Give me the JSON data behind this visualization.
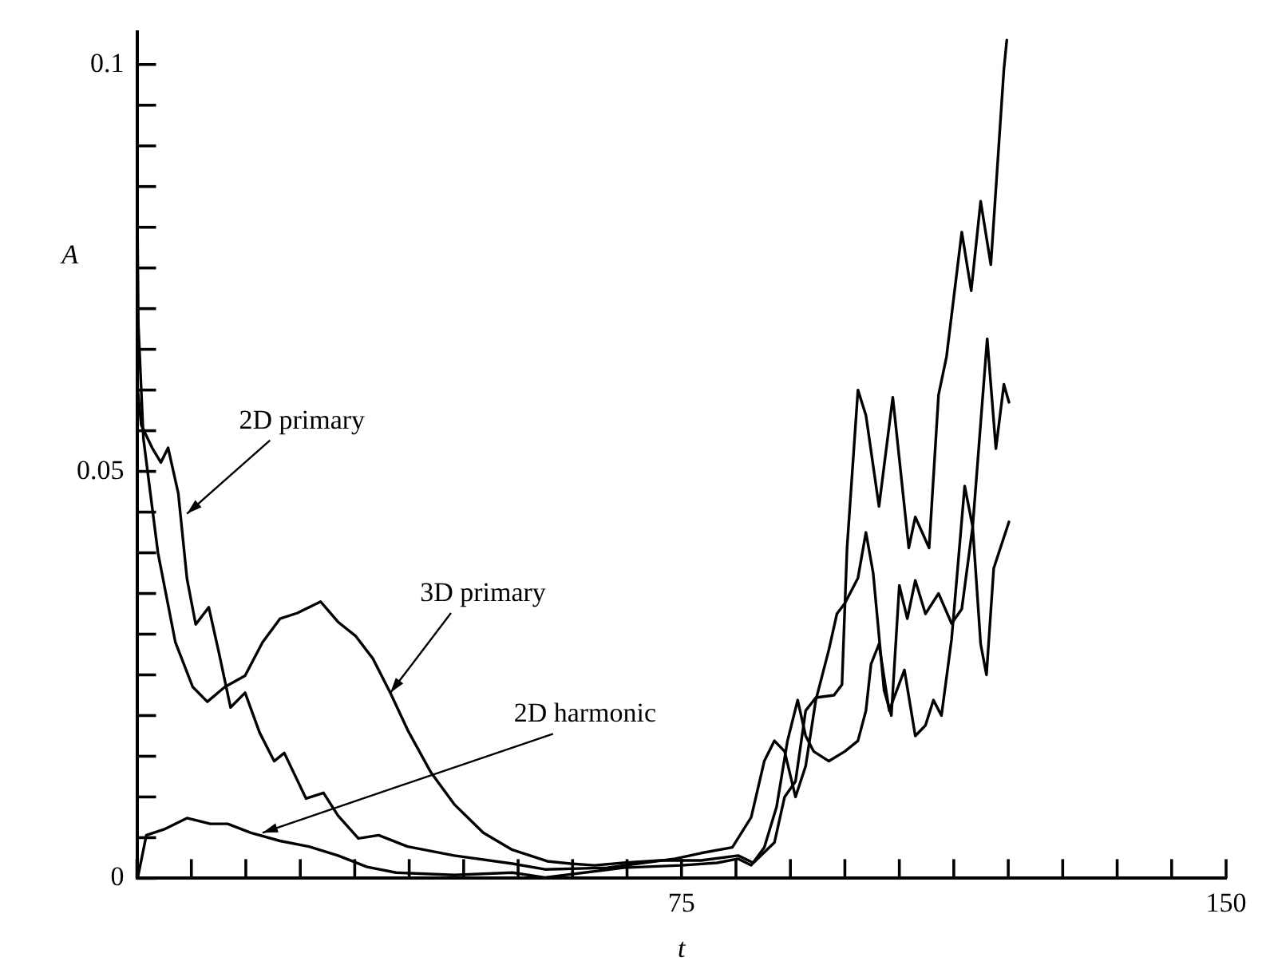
{
  "chart_data": {
    "type": "line",
    "xlabel": "t",
    "ylabel": "A",
    "xlim": [
      0,
      150
    ],
    "ylim": [
      0,
      0.104
    ],
    "xticks": [
      {
        "value": 0,
        "label": null
      },
      {
        "value": 7.5,
        "label": null
      },
      {
        "value": 15,
        "label": null
      },
      {
        "value": 22.5,
        "label": null
      },
      {
        "value": 30,
        "label": null
      },
      {
        "value": 37.5,
        "label": null
      },
      {
        "value": 45,
        "label": null
      },
      {
        "value": 52.5,
        "label": null
      },
      {
        "value": 60,
        "label": null
      },
      {
        "value": 67.5,
        "label": null
      },
      75,
      {
        "value": 82.5,
        "label": null
      },
      {
        "value": 90,
        "label": null
      },
      {
        "value": 97.5,
        "label": null
      },
      {
        "value": 105,
        "label": null
      },
      {
        "value": 112.5,
        "label": null
      },
      {
        "value": 120,
        "label": null
      },
      {
        "value": 127.5,
        "label": null
      },
      {
        "value": 135,
        "label": null
      },
      {
        "value": 142.5,
        "label": null
      },
      150
    ],
    "yticks": [
      0,
      {
        "value": 0.005,
        "label": null
      },
      {
        "value": 0.01,
        "label": null
      },
      {
        "value": 0.015,
        "label": null
      },
      {
        "value": 0.02,
        "label": null
      },
      {
        "value": 0.025,
        "label": null
      },
      {
        "value": 0.03,
        "label": null
      },
      {
        "value": 0.035,
        "label": null
      },
      {
        "value": 0.04,
        "label": null
      },
      {
        "value": 0.045,
        "label": null
      },
      0.05,
      {
        "value": 0.055,
        "label": null
      },
      {
        "value": 0.06,
        "label": null
      },
      {
        "value": 0.065,
        "label": null
      },
      {
        "value": 0.07,
        "label": null
      },
      {
        "value": 0.075,
        "label": null
      },
      {
        "value": 0.08,
        "label": null
      },
      {
        "value": 0.085,
        "label": null
      },
      {
        "value": 0.09,
        "label": null
      },
      {
        "value": 0.095,
        "label": null
      },
      0.1
    ],
    "series": [
      {
        "color": "#000000",
        "x": [
          0,
          0.6,
          2.1,
          3.3,
          4.3,
          5.7,
          6.9,
          8.1,
          9.9,
          11.3,
          12.9,
          14.9,
          16.9,
          18.9,
          20.3,
          23.3,
          25.7,
          27.7,
          30.5,
          33.3,
          37.3,
          43.7,
          51.7,
          56.2,
          64.8,
          74.1,
          77.7,
          82.0,
          84.6,
          86.4,
          87.8,
          89.2,
          90.7,
          92.1,
          93.5,
          95.3,
          96.4,
          97.5,
          99.3,
          100.4,
          101.4,
          102.9,
          103.9,
          105.0,
          106.1,
          107.2,
          108.6,
          110.4,
          112.2,
          113.6,
          115.1,
          117.1,
          118.3,
          119.4,
          120.1
        ],
        "values": [
          0.061,
          0.0557,
          0.0529,
          0.0511,
          0.0529,
          0.0473,
          0.0368,
          0.0312,
          0.0333,
          0.0277,
          0.021,
          0.0228,
          0.0179,
          0.0144,
          0.0154,
          0.0098,
          0.0105,
          0.0077,
          0.0049,
          0.0053,
          0.0039,
          0.0028,
          0.0018,
          0.0011,
          0.0013,
          0.0024,
          0.0031,
          0.0038,
          0.0075,
          0.0144,
          0.0169,
          0.0156,
          0.01,
          0.0138,
          0.0219,
          0.0281,
          0.0325,
          0.0338,
          0.0369,
          0.0425,
          0.0375,
          0.0231,
          0.02,
          0.036,
          0.0319,
          0.0366,
          0.0325,
          0.035,
          0.0313,
          0.0331,
          0.0432,
          0.0663,
          0.0528,
          0.0607,
          0.0585
        ]
      },
      {
        "color": "#000000",
        "x": [
          0,
          0.2,
          0.9,
          2.9,
          5.3,
          7.7,
          9.7,
          12.1,
          14.9,
          17.3,
          19.7,
          22.1,
          25.3,
          27.7,
          30.1,
          32.5,
          34.9,
          37.3,
          40.5,
          43.7,
          47.7,
          51.7,
          56.5,
          59.7,
          63,
          67,
          72,
          77.7,
          82.8,
          84.9,
          87.8,
          89.2,
          90.7,
          92.1,
          93.5,
          96.0,
          97.1,
          97.8,
          99.3,
          100.4,
          102.2,
          104.1,
          106.3,
          107.2,
          109.1,
          110.4,
          111.5,
          113.6,
          114.9,
          116.2,
          117.6,
          119.4,
          119.8
        ],
        "values": [
          0.0875,
          0.068,
          0.054,
          0.04,
          0.029,
          0.0235,
          0.0217,
          0.0235,
          0.0249,
          0.029,
          0.0319,
          0.0326,
          0.034,
          0.0315,
          0.0298,
          0.027,
          0.0228,
          0.0182,
          0.013,
          0.0091,
          0.0056,
          0.0035,
          0.0021,
          0.0018,
          0.0016,
          0.0019,
          0.0022,
          0.0022,
          0.0028,
          0.0019,
          0.0044,
          0.01,
          0.0119,
          0.0206,
          0.0222,
          0.0225,
          0.0238,
          0.0406,
          0.06,
          0.0569,
          0.0457,
          0.0591,
          0.0406,
          0.0444,
          0.0406,
          0.0594,
          0.0641,
          0.0794,
          0.0722,
          0.0832,
          0.0754,
          0.0994,
          0.103
        ]
      },
      {
        "color": "#000000",
        "x": [
          0.1,
          1.3,
          3.7,
          6.9,
          10.1,
          12.5,
          15.7,
          19.7,
          23.7,
          27.7,
          31.7,
          35.7,
          43.7,
          51.7,
          56.2,
          67,
          75,
          79.9,
          82.8,
          84.6,
          86.4,
          88.1,
          89.6,
          91.0,
          92.1,
          93.2,
          95.3,
          97.5,
          99.3,
          100.4,
          101.1,
          102.2,
          103.6,
          105.7,
          107.2,
          108.6,
          109.7,
          110.8,
          112.2,
          114.0,
          115.1,
          116.2,
          117.0,
          118.0,
          120.1
        ],
        "values": [
          0,
          0.0053,
          0.006,
          0.0074,
          0.0067,
          0.0067,
          0.0056,
          0.0046,
          0.0039,
          0.0028,
          0.0014,
          0.0007,
          0.0004,
          0.0007,
          0.0001,
          0.0013,
          0.0016,
          0.0019,
          0.0024,
          0.0016,
          0.0038,
          0.0088,
          0.0169,
          0.0219,
          0.0175,
          0.0156,
          0.0144,
          0.0156,
          0.0169,
          0.0206,
          0.0263,
          0.0288,
          0.0206,
          0.0256,
          0.0175,
          0.0188,
          0.0219,
          0.02,
          0.0294,
          0.0482,
          0.0432,
          0.0288,
          0.025,
          0.0381,
          0.0438
        ]
      }
    ],
    "annotations": [
      {
        "text": "2D primary",
        "x": 6.9,
        "y": 0.0448
      },
      {
        "text": "3D primary",
        "x": 34.9,
        "y": 0.0228
      },
      {
        "text": "2D harmonic",
        "x": 17.3,
        "y": 0.0056
      }
    ]
  }
}
